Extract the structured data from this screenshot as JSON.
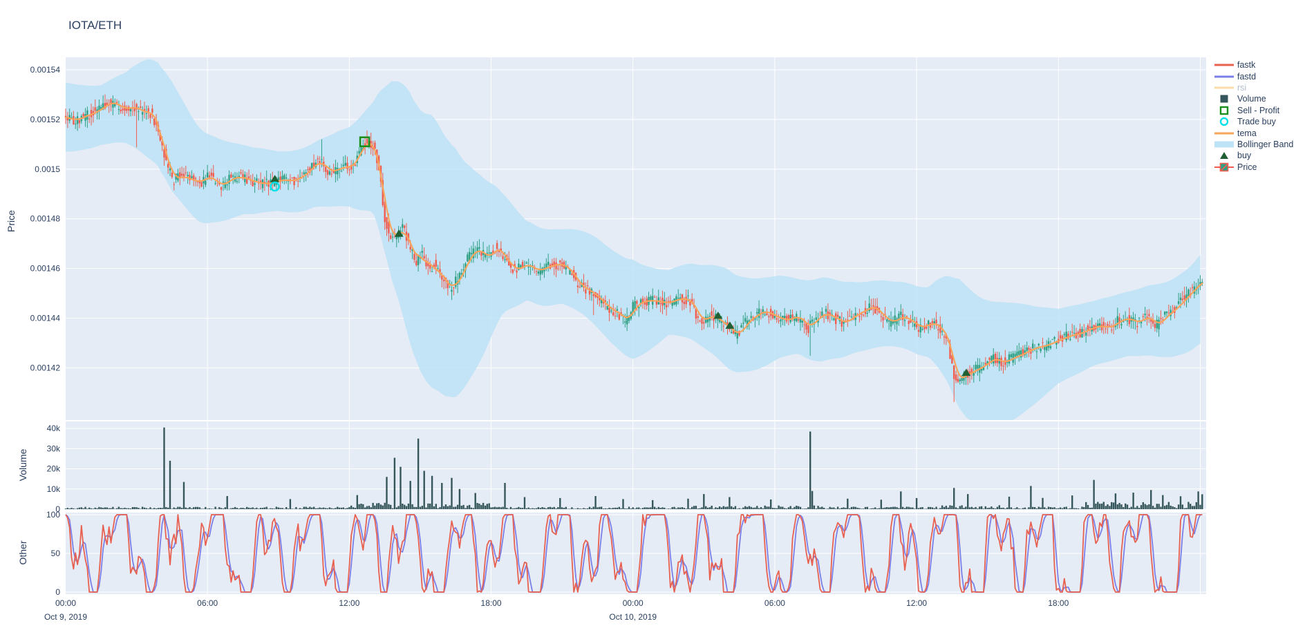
{
  "title": "IOTA/ETH",
  "colors": {
    "panel_bg": "#E5ECF6",
    "grid": "#FFFFFF",
    "text": "#2a3f5f",
    "muted_text": "#b2bccc",
    "fastk": "#E8604F",
    "fastd": "#7B7FE8",
    "rsi": "#FBDCA8",
    "volume": "#35565A",
    "sell_profit": "#1B8F1B",
    "trade_buy": "#00E0E8",
    "tema": "#F9A45B",
    "bollinger": "#BDE3F6",
    "buy_marker": "#1F5F33",
    "candle_up": "#2FA083",
    "candle_down": "#F25C4F"
  },
  "legend": {
    "items": [
      {
        "key": "fastk",
        "glyph": "line",
        "color": "#E8604F",
        "label": "fastk",
        "muted": false
      },
      {
        "key": "fastd",
        "glyph": "line",
        "color": "#7B7FE8",
        "label": "fastd",
        "muted": false
      },
      {
        "key": "rsi",
        "glyph": "line",
        "color": "#FBDCA8",
        "label": "rsi",
        "muted": true
      },
      {
        "key": "volume",
        "glyph": "square",
        "color": "#35565A",
        "label": "Volume",
        "muted": false
      },
      {
        "key": "sell-profit",
        "glyph": "open-square",
        "color": "#1B8F1B",
        "label": "Sell - Profit",
        "muted": false
      },
      {
        "key": "trade-buy",
        "glyph": "open-circle",
        "color": "#00E0E8",
        "label": "Trade buy",
        "muted": false
      },
      {
        "key": "tema",
        "glyph": "line",
        "color": "#F9A45B",
        "label": "tema",
        "muted": false
      },
      {
        "key": "bollinger-band",
        "glyph": "band",
        "color": "#BDE3F6",
        "label": "Bollinger Band",
        "muted": false
      },
      {
        "key": "buy",
        "glyph": "triangle",
        "color": "#1F5F33",
        "label": "buy",
        "muted": false
      },
      {
        "key": "price",
        "glyph": "candle",
        "color": "#2FA083",
        "color2": "#F25C4F",
        "label": "Price",
        "muted": false
      }
    ]
  },
  "chart_data": {
    "type": "candlestick",
    "title": "IOTA/ETH",
    "legend_position": "right",
    "grid": true,
    "traces": [
      {
        "name": "Price",
        "type": "candlestick",
        "panel": "price"
      },
      {
        "name": "tema",
        "type": "line",
        "panel": "price"
      },
      {
        "name": "Bollinger Band",
        "type": "area",
        "panel": "price"
      },
      {
        "name": "buy",
        "type": "marker-triangle-up",
        "panel": "price"
      },
      {
        "name": "Sell - Profit",
        "type": "marker-open-square",
        "panel": "price"
      },
      {
        "name": "Trade buy",
        "type": "marker-open-circle",
        "panel": "price"
      },
      {
        "name": "Volume",
        "type": "bar",
        "panel": "volume"
      },
      {
        "name": "fastk",
        "type": "line",
        "panel": "other"
      },
      {
        "name": "fastd",
        "type": "line",
        "panel": "other"
      },
      {
        "name": "rsi",
        "type": "line",
        "panel": "other",
        "hidden": true
      }
    ],
    "x_axis": {
      "range": [
        0,
        48.25
      ],
      "ticks": [
        {
          "hour": 0,
          "label": "00:00",
          "date": "Oct 9, 2019"
        },
        {
          "hour": 6,
          "label": "06:00"
        },
        {
          "hour": 12,
          "label": "12:00"
        },
        {
          "hour": 18,
          "label": "18:00"
        },
        {
          "hour": 24,
          "label": "00:00",
          "date": "Oct 10, 2019"
        },
        {
          "hour": 30,
          "label": "06:00"
        },
        {
          "hour": 36,
          "label": "12:00"
        },
        {
          "hour": 42,
          "label": "18:00"
        }
      ],
      "gridline_hours": [
        6,
        12,
        18,
        24,
        30,
        36,
        42,
        48
      ]
    },
    "panels": {
      "price": {
        "label": "Price",
        "range": [
          0.001399,
          0.001545
        ],
        "ticks": [
          {
            "v": 0.00154,
            "label": "0.00154"
          },
          {
            "v": 0.00152,
            "label": "0.00152"
          },
          {
            "v": 0.0015,
            "label": "0.0015"
          },
          {
            "v": 0.00148,
            "label": "0.00148"
          },
          {
            "v": 0.00146,
            "label": "0.00146"
          },
          {
            "v": 0.00144,
            "label": "0.00144"
          },
          {
            "v": 0.00142,
            "label": "0.00142"
          }
        ]
      },
      "volume": {
        "label": "Volume",
        "range": [
          0,
          43500
        ],
        "ticks": [
          {
            "v": 0,
            "label": "0"
          },
          {
            "v": 10000,
            "label": "10k"
          },
          {
            "v": 20000,
            "label": "20k"
          },
          {
            "v": 30000,
            "label": "30k"
          },
          {
            "v": 40000,
            "label": "40k"
          }
        ]
      },
      "other": {
        "label": "Other",
        "range": [
          0,
          100
        ],
        "ticks": [
          {
            "v": 0,
            "label": "0"
          },
          {
            "v": 50,
            "label": "50"
          },
          {
            "v": 100,
            "label": "100"
          }
        ]
      }
    },
    "candle_interval_hours": 0.0833333,
    "candles_end_hour": 48.1,
    "render_seed": 42,
    "price_path_keyframes": [
      [
        0,
        0.001521
      ],
      [
        0.5,
        0.0015195
      ],
      [
        0.9,
        0.0015215
      ],
      [
        1.4,
        0.0015235
      ],
      [
        1.9,
        0.001527
      ],
      [
        2.2,
        0.0015262
      ],
      [
        2.5,
        0.001524
      ],
      [
        2.9,
        0.0015252
      ],
      [
        3.3,
        0.001523
      ],
      [
        3.7,
        0.0015225
      ],
      [
        4.0,
        0.001515
      ],
      [
        4.3,
        0.001505
      ],
      [
        4.6,
        0.001495
      ],
      [
        4.9,
        0.0014975
      ],
      [
        5.3,
        0.001496
      ],
      [
        5.8,
        0.0014945
      ],
      [
        6.2,
        0.001498
      ],
      [
        6.6,
        0.0014925
      ],
      [
        7.0,
        0.001496
      ],
      [
        7.5,
        0.001497
      ],
      [
        8.0,
        0.001495
      ],
      [
        8.5,
        0.001494
      ],
      [
        8.85,
        0.0014945
      ],
      [
        9.2,
        0.001496
      ],
      [
        9.6,
        0.001495
      ],
      [
        10.0,
        0.0014965
      ],
      [
        10.4,
        0.0014995
      ],
      [
        10.8,
        0.001504
      ],
      [
        11.1,
        0.0015
      ],
      [
        11.4,
        0.0014985
      ],
      [
        11.8,
        0.0015015
      ],
      [
        12.1,
        0.0015
      ],
      [
        12.4,
        0.001504
      ],
      [
        12.65,
        0.00151
      ],
      [
        12.9,
        0.001512
      ],
      [
        13.1,
        0.001509
      ],
      [
        13.35,
        0.0015
      ],
      [
        13.6,
        0.001479
      ],
      [
        13.85,
        0.001472
      ],
      [
        14.1,
        0.0014735
      ],
      [
        14.35,
        0.0014775
      ],
      [
        14.6,
        0.001469
      ],
      [
        14.9,
        0.001463
      ],
      [
        15.15,
        0.001466
      ],
      [
        15.45,
        0.001459
      ],
      [
        15.7,
        0.001462
      ],
      [
        16.0,
        0.001455
      ],
      [
        16.4,
        0.001452
      ],
      [
        16.8,
        0.001458
      ],
      [
        17.1,
        0.001465
      ],
      [
        17.5,
        0.001468
      ],
      [
        17.9,
        0.001464
      ],
      [
        18.3,
        0.001469
      ],
      [
        18.7,
        0.001463
      ],
      [
        19.1,
        0.001459
      ],
      [
        19.5,
        0.001462
      ],
      [
        20.0,
        0.001459
      ],
      [
        20.5,
        0.001461
      ],
      [
        21.0,
        0.001462
      ],
      [
        21.4,
        0.001459
      ],
      [
        21.8,
        0.001453
      ],
      [
        22.2,
        0.001451
      ],
      [
        22.6,
        0.001448
      ],
      [
        23.0,
        0.001444
      ],
      [
        23.4,
        0.001442
      ],
      [
        23.8,
        0.001439
      ],
      [
        24.1,
        0.001445
      ],
      [
        24.5,
        0.001447
      ],
      [
        25.0,
        0.001447
      ],
      [
        25.5,
        0.001446
      ],
      [
        26.0,
        0.001448
      ],
      [
        26.5,
        0.001447
      ],
      [
        26.9,
        0.0014385
      ],
      [
        27.3,
        0.001441
      ],
      [
        27.6,
        0.00144
      ],
      [
        28.1,
        0.001436
      ],
      [
        28.5,
        0.001433
      ],
      [
        28.8,
        0.001438
      ],
      [
        29.2,
        0.001441
      ],
      [
        29.6,
        0.001443
      ],
      [
        30.0,
        0.001441
      ],
      [
        30.5,
        0.001439
      ],
      [
        31.0,
        0.001441
      ],
      [
        31.5,
        0.001436
      ],
      [
        31.8,
        0.00144
      ],
      [
        32.2,
        0.001442
      ],
      [
        32.6,
        0.00144
      ],
      [
        33.0,
        0.001438
      ],
      [
        33.4,
        0.001441
      ],
      [
        33.8,
        0.001443
      ],
      [
        34.2,
        0.001445
      ],
      [
        34.6,
        0.001441
      ],
      [
        35.0,
        0.001438
      ],
      [
        35.4,
        0.001441
      ],
      [
        35.8,
        0.001439
      ],
      [
        36.2,
        0.001436
      ],
      [
        36.6,
        0.001438
      ],
      [
        37.0,
        0.001437
      ],
      [
        37.4,
        0.00143
      ],
      [
        37.7,
        0.001415
      ],
      [
        38.1,
        0.001417
      ],
      [
        38.5,
        0.001419
      ],
      [
        38.9,
        0.001421
      ],
      [
        39.3,
        0.001424
      ],
      [
        39.7,
        0.001422
      ],
      [
        40.1,
        0.001424
      ],
      [
        40.6,
        0.001426
      ],
      [
        41.0,
        0.001428
      ],
      [
        41.5,
        0.001429
      ],
      [
        42.0,
        0.001431
      ],
      [
        42.5,
        0.001433
      ],
      [
        43.0,
        0.001434
      ],
      [
        43.4,
        0.001436
      ],
      [
        43.8,
        0.001437
      ],
      [
        44.2,
        0.001436
      ],
      [
        44.6,
        0.001439
      ],
      [
        45.0,
        0.00144
      ],
      [
        45.4,
        0.001438
      ],
      [
        45.8,
        0.001441
      ],
      [
        46.2,
        0.001437
      ],
      [
        46.6,
        0.001441
      ],
      [
        47.0,
        0.001444
      ],
      [
        47.4,
        0.001448
      ],
      [
        47.8,
        0.001452
      ],
      [
        48.1,
        0.001455
      ]
    ],
    "bollinger_halfwidth_keyframes": [
      [
        0,
        1.4e-05
      ],
      [
        1.5,
        1.2e-05
      ],
      [
        2.5,
        1.4e-05
      ],
      [
        3.5,
        2e-05
      ],
      [
        4.5,
        2.2e-05
      ],
      [
        6,
        1.8e-05
      ],
      [
        7.5,
        1.4e-05
      ],
      [
        9,
        1.2e-05
      ],
      [
        10.5,
        1.3e-05
      ],
      [
        12,
        1.6e-05
      ],
      [
        13,
        2.2e-05
      ],
      [
        13.8,
        4e-05
      ],
      [
        14.5,
        5e-05
      ],
      [
        15.5,
        5.5e-05
      ],
      [
        16.5,
        5e-05
      ],
      [
        17.5,
        3.8e-05
      ],
      [
        18.5,
        2.4e-05
      ],
      [
        19.5,
        1.6e-05
      ],
      [
        21,
        1.5e-05
      ],
      [
        22.5,
        1.8e-05
      ],
      [
        24,
        2e-05
      ],
      [
        25.5,
        1.3e-05
      ],
      [
        26.8,
        1.6e-05
      ],
      [
        28,
        2e-05
      ],
      [
        29.5,
        1.8e-05
      ],
      [
        31,
        1.5e-05
      ],
      [
        32,
        1.7e-05
      ],
      [
        33.5,
        1.4e-05
      ],
      [
        35,
        1.3e-05
      ],
      [
        36.5,
        1.4e-05
      ],
      [
        37.8,
        2.6e-05
      ],
      [
        39,
        2.8e-05
      ],
      [
        40.5,
        2.2e-05
      ],
      [
        42,
        1.5e-05
      ],
      [
        43.5,
        1.3e-05
      ],
      [
        45,
        1.3e-05
      ],
      [
        46.5,
        1.5e-05
      ],
      [
        48.1,
        1.8e-05
      ]
    ],
    "wick_events": [
      [
        3.0,
        -1.3e-05
      ],
      [
        10.8,
        6e-06
      ],
      [
        22.3,
        -6e-06
      ],
      [
        31.5,
        -1.1e-05
      ],
      [
        37.6,
        -9e-06
      ]
    ],
    "volume_spikes": [
      [
        4.15,
        40500
      ],
      [
        4.45,
        24000
      ],
      [
        5.0,
        13500
      ],
      [
        6.8,
        6500
      ],
      [
        9.5,
        5000
      ],
      [
        12.3,
        7000
      ],
      [
        13.6,
        16000
      ],
      [
        13.9,
        25500
      ],
      [
        14.2,
        21000
      ],
      [
        14.55,
        14000
      ],
      [
        14.9,
        35000
      ],
      [
        15.2,
        19000
      ],
      [
        15.5,
        16500
      ],
      [
        15.9,
        13000
      ],
      [
        16.3,
        15500
      ],
      [
        16.7,
        10000
      ],
      [
        17.3,
        8000
      ],
      [
        18.6,
        13000
      ],
      [
        19.4,
        6000
      ],
      [
        20.9,
        5500
      ],
      [
        22.4,
        6500
      ],
      [
        23.6,
        5000
      ],
      [
        24.8,
        4500
      ],
      [
        26.3,
        5200
      ],
      [
        27.0,
        7500
      ],
      [
        28.1,
        6000
      ],
      [
        29.8,
        4800
      ],
      [
        31.5,
        38500
      ],
      [
        31.6,
        9000
      ],
      [
        33.1,
        5200
      ],
      [
        34.5,
        4700
      ],
      [
        35.3,
        8800
      ],
      [
        36.0,
        5500
      ],
      [
        37.6,
        10500
      ],
      [
        38.2,
        7500
      ],
      [
        39.9,
        6200
      ],
      [
        40.8,
        11500
      ],
      [
        41.3,
        5600
      ],
      [
        42.6,
        6800
      ],
      [
        43.5,
        14500
      ],
      [
        44.4,
        7800
      ],
      [
        45.2,
        8200
      ],
      [
        45.9,
        9500
      ],
      [
        46.4,
        7000
      ],
      [
        47.2,
        6400
      ],
      [
        47.9,
        8800
      ],
      [
        48.05,
        7400
      ]
    ],
    "volume_elevated_regions": [
      [
        12,
        18,
        2.6
      ],
      [
        26.5,
        32,
        1.5
      ],
      [
        37,
        39.5,
        1.6
      ],
      [
        43,
        48.2,
        3.0
      ]
    ],
    "markers": {
      "buy": [
        [
          8.85,
          0.001496
        ],
        [
          14.1,
          0.001474
        ],
        [
          27.6,
          0.001441
        ],
        [
          28.1,
          0.001437
        ],
        [
          38.1,
          0.001418
        ]
      ],
      "sell_profit": [
        [
          12.65,
          0.001511
        ]
      ],
      "trade_buy": [
        [
          8.85,
          0.001493
        ]
      ]
    },
    "oscillator": {
      "series": [
        "fastk",
        "fastd"
      ],
      "range": [
        0,
        100
      ],
      "fastd_smoothing_samples": 3
    }
  }
}
